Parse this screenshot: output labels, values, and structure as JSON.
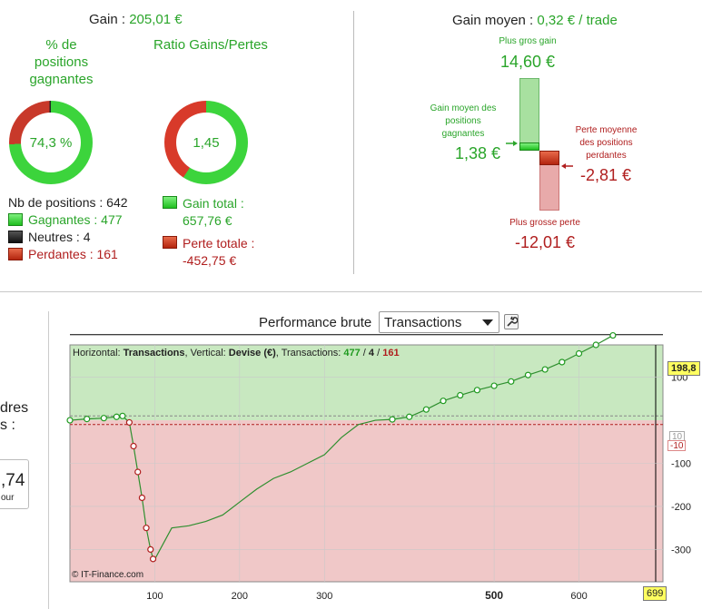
{
  "summary": {
    "gain_label": "Gain : ",
    "gain_value": "205,01 €",
    "pct_title": "% de positions gagnantes",
    "pct_value": "74,3 %",
    "ratio_title": "Ratio Gains/Pertes",
    "ratio_value": "1,45",
    "nb_positions": "Nb de positions : 642",
    "gagnantes": "Gagnantes : 477",
    "neutres": "Neutres : 4",
    "perdantes": "Perdantes : 161",
    "gain_total": "Gain total : 657,76 €",
    "perte_totale": "Perte totale : -452,75 €",
    "win_fraction": 0.743,
    "neutral_fraction": 0.006,
    "ratio_fraction": 0.592
  },
  "gain_moyen": {
    "label": "Gain moyen : ",
    "value": "0,32 € / trade",
    "plus_gros_gain_label": "Plus gros gain",
    "plus_gros_gain_value": "14,60 €",
    "gain_moyen_label": "Gain moyen des positions gagnantes",
    "gain_moyen_value": "1,38 €",
    "perte_moyenne_label": "Perte moyenne des positions perdantes",
    "perte_moyenne_value": "-2,81 €",
    "plus_grosse_perte_label": "Plus grosse perte",
    "plus_grosse_perte_value": "-12,01 €"
  },
  "left_partial": {
    "line1": "dres",
    "line2": "s :",
    "box_value": ",74",
    "box_sub": "our"
  },
  "perf": {
    "title": "Performance brute",
    "select_value": "Transactions",
    "legend_prefix": "Horizontal: ",
    "legend_h": "Transactions",
    "legend_mid": ", Vertical: ",
    "legend_v": "Devise (€)",
    "legend_tx": ", Transactions: ",
    "legend_win": "477",
    "legend_slash1": " / ",
    "legend_neutral": "4",
    "legend_slash2": " / ",
    "legend_loss": "161",
    "copyright": "© IT-Finance.com",
    "current_value_label": "198,8",
    "threshold_pos_label": "10",
    "threshold_neg_label": "-10",
    "x_end_label": "699"
  },
  "chart_data": {
    "type": "line",
    "title": "Performance brute",
    "xlabel": "Transactions",
    "ylabel": "Devise (€)",
    "xlim": [
      0,
      699
    ],
    "ylim": [
      -375,
      175
    ],
    "x_ticks": [
      "100",
      "200",
      "300",
      "500",
      "600"
    ],
    "y_ticks": [
      "100",
      "-100",
      "-200",
      "-300"
    ],
    "bold_x_tick": "500",
    "series": [
      {
        "name": "",
        "x": [
          0,
          20,
          40,
          55,
          62,
          70,
          75,
          80,
          85,
          90,
          95,
          98,
          100,
          120,
          140,
          160,
          180,
          200,
          220,
          240,
          260,
          280,
          300,
          320,
          340,
          360,
          380,
          400,
          420,
          440,
          460,
          480,
          500,
          520,
          540,
          560,
          580,
          600,
          620,
          640
        ],
        "values": [
          0,
          3,
          5,
          8,
          10,
          -5,
          -60,
          -120,
          -180,
          -250,
          -300,
          -322,
          -323,
          -250,
          -245,
          -235,
          -220,
          -190,
          -160,
          -135,
          -120,
          -100,
          -80,
          -40,
          -10,
          0,
          2,
          8,
          25,
          45,
          58,
          70,
          80,
          90,
          105,
          118,
          135,
          155,
          175,
          197
        ]
      }
    ],
    "threshold_upper": 10,
    "threshold_lower": -10,
    "current_value": 198.8,
    "zone_colors": {
      "positive": "#c8e8c0",
      "negative": "#f0c8c8"
    },
    "colors": {
      "line": "#2f8f2f",
      "win_marker": "#1f9a1f",
      "loss_marker": "#b01e1e"
    }
  }
}
